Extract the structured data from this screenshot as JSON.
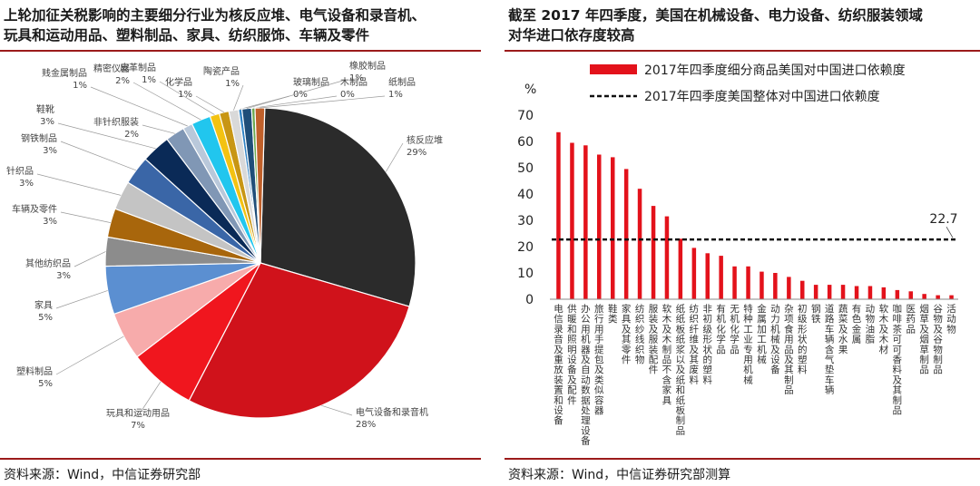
{
  "left": {
    "title_line1": "上轮加征关税影响的主要细分行业为核反应堆、电气设备和录音机、",
    "title_line2": "玩具和运动用品、塑料制品、家具、纺织服饰、车辆及零件",
    "source": "资料来源：Wind，中信证券研究部"
  },
  "right": {
    "title_line1": "截至 2017 年四季度，美国在机械设备、电力设备、纺织服装领域",
    "title_line2": "对华进口依存度较高",
    "source": "资料来源：Wind，中信证券研究部测算"
  },
  "chart_data": [
    {
      "type": "pie",
      "slices": [
        {
          "name": "核反应堆",
          "value": 29,
          "label": "29%",
          "color": "#2b2b2b"
        },
        {
          "name": "电气设备和录音机",
          "value": 28,
          "label": "28%",
          "color": "#d0121b"
        },
        {
          "name": "玩具和运动用品",
          "value": 7,
          "label": "7%",
          "color": "#f0161e"
        },
        {
          "name": "塑料制品",
          "value": 5,
          "label": "5%",
          "color": "#f7abab"
        },
        {
          "name": "家具",
          "value": 5,
          "label": "5%",
          "color": "#5b8fd1"
        },
        {
          "name": "其他纺织品",
          "value": 3,
          "label": "3%",
          "color": "#8c8c8c"
        },
        {
          "name": "车辆及零件",
          "value": 3,
          "label": "3%",
          "color": "#a8660c"
        },
        {
          "name": "针织品",
          "value": 3,
          "label": "3%",
          "color": "#c4c4c4"
        },
        {
          "name": "钢铁制品",
          "value": 3,
          "label": "3%",
          "color": "#3a66a7"
        },
        {
          "name": "鞋靴",
          "value": 3,
          "label": "3%",
          "color": "#0a2a57"
        },
        {
          "name": "非针织服装",
          "value": 2,
          "label": "2%",
          "color": "#8097b5"
        },
        {
          "name": "贱金属制品",
          "value": 1,
          "label": "1%",
          "color": "#b9c8da"
        },
        {
          "name": "精密仪器",
          "value": 2,
          "label": "2%",
          "color": "#21c6ee"
        },
        {
          "name": "皮革制品",
          "value": 1,
          "label": "1%",
          "color": "#f3c212"
        },
        {
          "name": "化学品",
          "value": 1,
          "label": "1%",
          "color": "#c89614"
        },
        {
          "name": "陶瓷产品",
          "value": 1,
          "label": "1%",
          "color": "#d9d9d9"
        },
        {
          "name": "玻璃制品",
          "value": 0,
          "label": "0%",
          "color": "#2f82c4"
        },
        {
          "name": "橡胶制品",
          "value": 1,
          "label": "1%",
          "color": "#1f4e79"
        },
        {
          "name": "木制品",
          "value": 0,
          "label": "0%",
          "color": "#6aa84f"
        },
        {
          "name": "纸制品",
          "value": 1,
          "label": "1%",
          "color": "#c0602a"
        }
      ]
    },
    {
      "type": "bar",
      "ylabel": "%",
      "ylim": [
        0,
        70
      ],
      "yticks": [
        0,
        10,
        20,
        30,
        40,
        50,
        60,
        70
      ],
      "categories": [
        "电信录音及重放装置和设备",
        "供暖和照明设备及配件",
        "办公用机器及自动数据处理设备",
        "旅行用手提包及类似容器",
        "鞋类",
        "家具及其零件",
        "纺织纱线织物",
        "服装及服装配件",
        "软木及木制品不含家具",
        "纸纸板纸浆以及纸和纸板制品",
        "纺织纤维及其废料",
        "非初级形状的塑料",
        "有机化学品",
        "无机化学品",
        "特种工业专用机械",
        "金属加工机械",
        "动力机械及设备",
        "杂项食用品及其制品",
        "初级形状的塑料",
        "钢铁",
        "道路车辆含气垫车辆",
        "蔬菜及水果",
        "有色金属",
        "动物油脂",
        "软木及木材",
        "咖啡茶可可香料及其制品",
        "医药品",
        "烟草及烟草制品",
        "谷物及谷物制品",
        "活动物"
      ],
      "series": [
        {
          "name": "2017年四季度细分商品美国对中国进口依赖度",
          "color": "#e3121b",
          "values": [
            63.5,
            59.5,
            58.5,
            55,
            54,
            49.5,
            42,
            35.5,
            31.5,
            23,
            19.5,
            17.5,
            16.5,
            12.5,
            12.5,
            10.5,
            10,
            8.5,
            7,
            5.5,
            5.5,
            5.5,
            5,
            5,
            4.5,
            3.5,
            3,
            2,
            1.5,
            1.5
          ]
        }
      ],
      "reference_line": {
        "name": "2017年四季度美国整体对中国进口依赖度",
        "value": 22.7,
        "label": "22.7",
        "style": "dashed"
      }
    }
  ]
}
